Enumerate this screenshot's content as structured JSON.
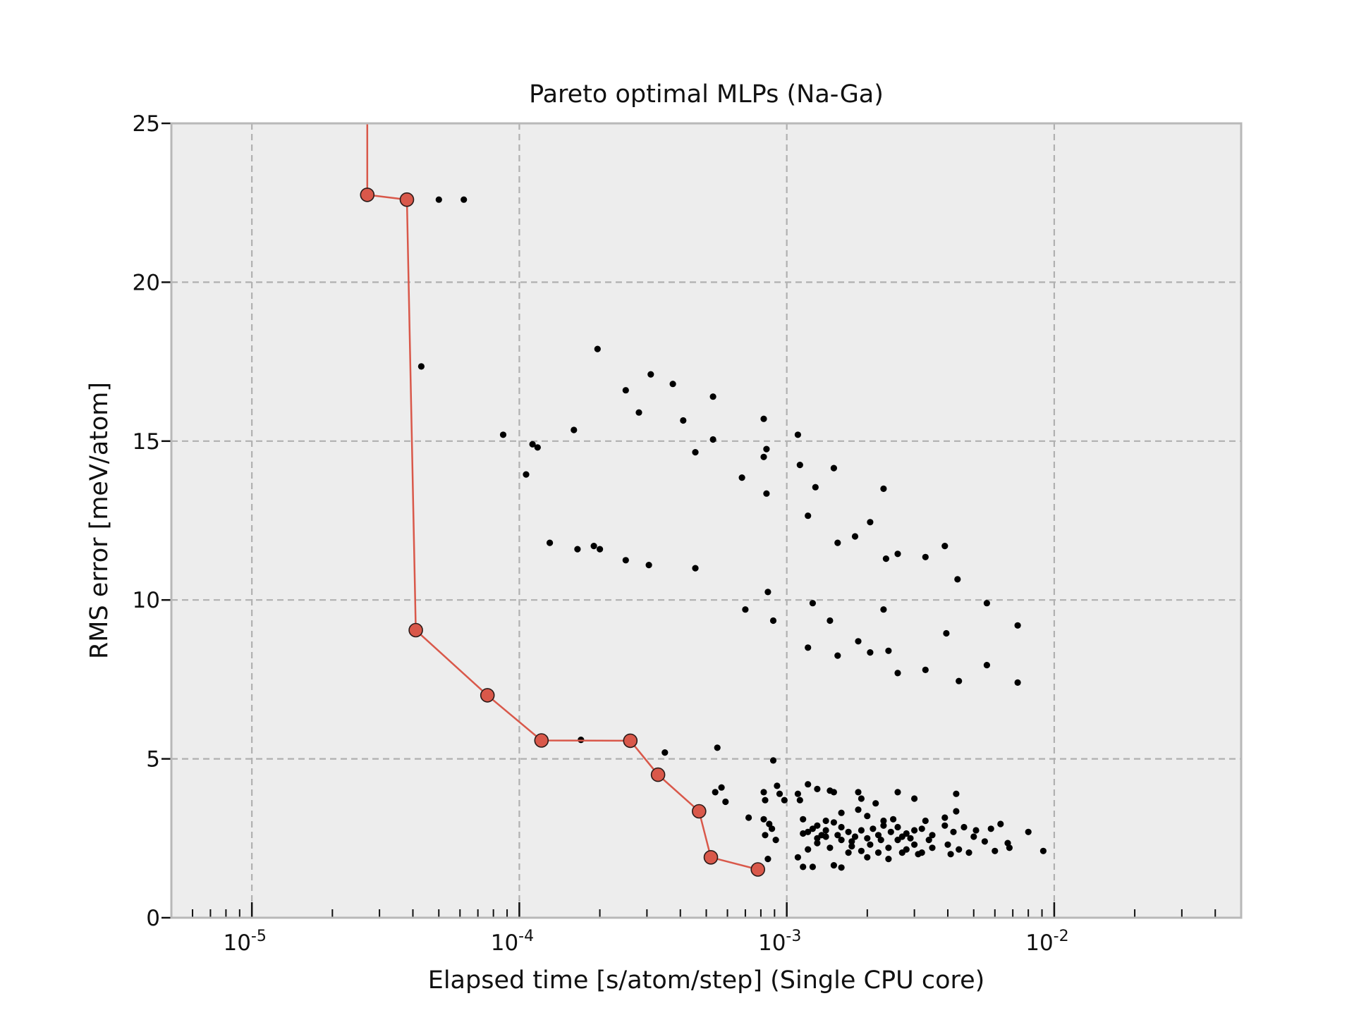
{
  "chart_data": {
    "type": "scatter",
    "title": "Pareto optimal MLPs (Na-Ga)",
    "xlabel": "Elapsed time [s/atom/step] (Single CPU core)",
    "ylabel": "RMS error [meV/atom]",
    "xscale": "log",
    "xlim": [
      5e-06,
      0.05
    ],
    "ylim": [
      0,
      25
    ],
    "grid": true,
    "background_color": "#ededed",
    "frame_color": "#b8b8b8",
    "grid_color": "#b0b0b0",
    "x_ticks": [
      {
        "base": "10",
        "exp": "-5",
        "value": 1e-05
      },
      {
        "base": "10",
        "exp": "-4",
        "value": 0.0001
      },
      {
        "base": "10",
        "exp": "-3",
        "value": 0.001
      },
      {
        "base": "10",
        "exp": "-2",
        "value": 0.01
      }
    ],
    "y_ticks": [
      "0",
      "5",
      "10",
      "15",
      "20",
      "25"
    ],
    "series": [
      {
        "kind": "pareto_front",
        "color": "#d9584a",
        "points": [
          [
            2.7e-05,
            26.0
          ],
          [
            2.7e-05,
            22.75
          ],
          [
            3.8e-05,
            22.6
          ],
          [
            4.1e-05,
            9.05
          ],
          [
            7.6e-05,
            7.0
          ],
          [
            0.000121,
            5.58
          ],
          [
            0.00026,
            5.57
          ],
          [
            0.00033,
            4.5
          ],
          [
            0.00047,
            3.35
          ],
          [
            0.00052,
            1.9
          ],
          [
            0.00078,
            1.52
          ]
        ]
      },
      {
        "kind": "candidates",
        "color": "#000000",
        "points": [
          [
            5e-05,
            22.6
          ],
          [
            6.2e-05,
            22.6
          ],
          [
            4.3e-05,
            17.35
          ],
          [
            8.7e-05,
            15.2
          ],
          [
            0.000106,
            13.95
          ],
          [
            0.000112,
            14.9
          ],
          [
            0.000117,
            14.8
          ],
          [
            0.00016,
            15.35
          ],
          [
            0.000196,
            17.9
          ],
          [
            0.00025,
            16.6
          ],
          [
            0.00028,
            15.9
          ],
          [
            0.00031,
            17.1
          ],
          [
            0.000375,
            16.8
          ],
          [
            0.00041,
            15.65
          ],
          [
            0.000455,
            14.65
          ],
          [
            0.00053,
            16.4
          ],
          [
            0.00053,
            15.05
          ],
          [
            0.00068,
            13.85
          ],
          [
            0.00082,
            15.7
          ],
          [
            0.00082,
            14.5
          ],
          [
            0.00084,
            14.75
          ],
          [
            0.00084,
            13.35
          ],
          [
            0.0011,
            15.2
          ],
          [
            0.00112,
            14.25
          ],
          [
            0.00128,
            13.55
          ],
          [
            0.0015,
            14.15
          ],
          [
            0.0023,
            13.5
          ],
          [
            0.0012,
            12.65
          ],
          [
            0.00155,
            11.8
          ],
          [
            0.0018,
            12.0
          ],
          [
            0.00205,
            12.45
          ],
          [
            0.00235,
            11.3
          ],
          [
            0.0026,
            11.45
          ],
          [
            0.0033,
            11.35
          ],
          [
            0.0039,
            11.7
          ],
          [
            0.00435,
            10.65
          ],
          [
            0.00013,
            11.8
          ],
          [
            0.000165,
            11.6
          ],
          [
            0.00019,
            11.7
          ],
          [
            0.0002,
            11.6
          ],
          [
            0.00025,
            11.25
          ],
          [
            0.000305,
            11.1
          ],
          [
            0.000455,
            11.0
          ],
          [
            0.00085,
            10.25
          ],
          [
            0.0007,
            9.7
          ],
          [
            0.00089,
            9.35
          ],
          [
            0.00125,
            9.9
          ],
          [
            0.00145,
            9.35
          ],
          [
            0.0023,
            9.7
          ],
          [
            0.0056,
            9.9
          ],
          [
            0.0073,
            9.2
          ],
          [
            0.0012,
            8.5
          ],
          [
            0.00155,
            8.25
          ],
          [
            0.00185,
            8.7
          ],
          [
            0.00205,
            8.35
          ],
          [
            0.0024,
            8.4
          ],
          [
            0.0026,
            7.7
          ],
          [
            0.0033,
            7.8
          ],
          [
            0.00395,
            8.95
          ],
          [
            0.0044,
            7.45
          ],
          [
            0.0056,
            7.95
          ],
          [
            0.0073,
            7.4
          ],
          [
            0.00017,
            5.6
          ],
          [
            0.00035,
            5.2
          ],
          [
            0.00055,
            5.35
          ],
          [
            0.00089,
            4.95
          ],
          [
            0.00054,
            3.95
          ],
          [
            0.00057,
            4.1
          ],
          [
            0.00059,
            3.65
          ],
          [
            0.00082,
            3.95
          ],
          [
            0.00083,
            3.7
          ],
          [
            0.00092,
            4.15
          ],
          [
            0.00094,
            3.9
          ],
          [
            0.00098,
            3.7
          ],
          [
            0.00072,
            3.15
          ],
          [
            0.00082,
            3.1
          ],
          [
            0.00086,
            2.95
          ],
          [
            0.00088,
            2.8
          ],
          [
            0.00091,
            2.45
          ],
          [
            0.00083,
            2.6
          ],
          [
            0.00085,
            1.85
          ],
          [
            0.0011,
            3.9
          ],
          [
            0.00112,
            3.7
          ],
          [
            0.0012,
            4.2
          ],
          [
            0.0013,
            4.05
          ],
          [
            0.00145,
            4.0
          ],
          [
            0.0015,
            3.95
          ],
          [
            0.00185,
            3.95
          ],
          [
            0.0019,
            3.75
          ],
          [
            0.00215,
            3.6
          ],
          [
            0.0026,
            3.95
          ],
          [
            0.003,
            3.75
          ],
          [
            0.0043,
            3.9
          ],
          [
            0.00115,
            2.65
          ],
          [
            0.0012,
            2.7
          ],
          [
            0.00125,
            2.8
          ],
          [
            0.0013,
            2.9
          ],
          [
            0.00135,
            2.6
          ],
          [
            0.0014,
            2.75
          ],
          [
            0.0015,
            3.0
          ],
          [
            0.0016,
            2.85
          ],
          [
            0.0017,
            2.7
          ],
          [
            0.0018,
            2.55
          ],
          [
            0.0019,
            2.75
          ],
          [
            0.002,
            2.5
          ],
          [
            0.0021,
            2.8
          ],
          [
            0.0022,
            2.6
          ],
          [
            0.0023,
            2.9
          ],
          [
            0.00245,
            2.7
          ],
          [
            0.0026,
            2.85
          ],
          [
            0.0028,
            2.65
          ],
          [
            0.003,
            2.75
          ],
          [
            0.0032,
            2.8
          ],
          [
            0.0035,
            2.6
          ],
          [
            0.0039,
            2.9
          ],
          [
            0.0042,
            2.7
          ],
          [
            0.0046,
            2.85
          ],
          [
            0.0051,
            2.75
          ],
          [
            0.0058,
            2.8
          ],
          [
            0.0063,
            2.95
          ],
          [
            0.008,
            2.7
          ],
          [
            0.0012,
            2.15
          ],
          [
            0.0013,
            2.35
          ],
          [
            0.00145,
            2.2
          ],
          [
            0.0016,
            2.45
          ],
          [
            0.00175,
            2.25
          ],
          [
            0.0019,
            2.1
          ],
          [
            0.00205,
            2.3
          ],
          [
            0.0022,
            2.05
          ],
          [
            0.0024,
            2.2
          ],
          [
            0.0026,
            2.45
          ],
          [
            0.0028,
            2.15
          ],
          [
            0.003,
            2.3
          ],
          [
            0.0032,
            2.05
          ],
          [
            0.0035,
            2.2
          ],
          [
            0.004,
            2.3
          ],
          [
            0.0044,
            2.15
          ],
          [
            0.0048,
            2.05
          ],
          [
            0.0055,
            2.4
          ],
          [
            0.006,
            2.1
          ],
          [
            0.0068,
            2.2
          ],
          [
            0.0091,
            2.1
          ],
          [
            0.0011,
            1.9
          ],
          [
            0.00115,
            1.6
          ],
          [
            0.00125,
            1.6
          ],
          [
            0.0015,
            1.65
          ],
          [
            0.0016,
            1.58
          ],
          [
            0.0017,
            2.05
          ],
          [
            0.002,
            1.9
          ],
          [
            0.0024,
            1.85
          ],
          [
            0.0027,
            2.05
          ],
          [
            0.0031,
            2.0
          ],
          [
            0.0041,
            2.0
          ],
          [
            0.00115,
            3.1
          ],
          [
            0.0014,
            3.05
          ],
          [
            0.0016,
            3.3
          ],
          [
            0.00185,
            3.4
          ],
          [
            0.002,
            3.2
          ],
          [
            0.0023,
            3.05
          ],
          [
            0.0025,
            3.1
          ],
          [
            0.0033,
            3.05
          ],
          [
            0.0039,
            3.15
          ],
          [
            0.0043,
            3.35
          ],
          [
            0.0013,
            2.5
          ],
          [
            0.00155,
            2.6
          ],
          [
            0.00175,
            2.4
          ],
          [
            0.00225,
            2.45
          ],
          [
            0.0029,
            2.5
          ],
          [
            0.0034,
            2.45
          ],
          [
            0.005,
            2.55
          ],
          [
            0.0067,
            2.35
          ],
          [
            0.0014,
            2.55
          ],
          [
            0.0027,
            2.55
          ]
        ]
      }
    ]
  }
}
